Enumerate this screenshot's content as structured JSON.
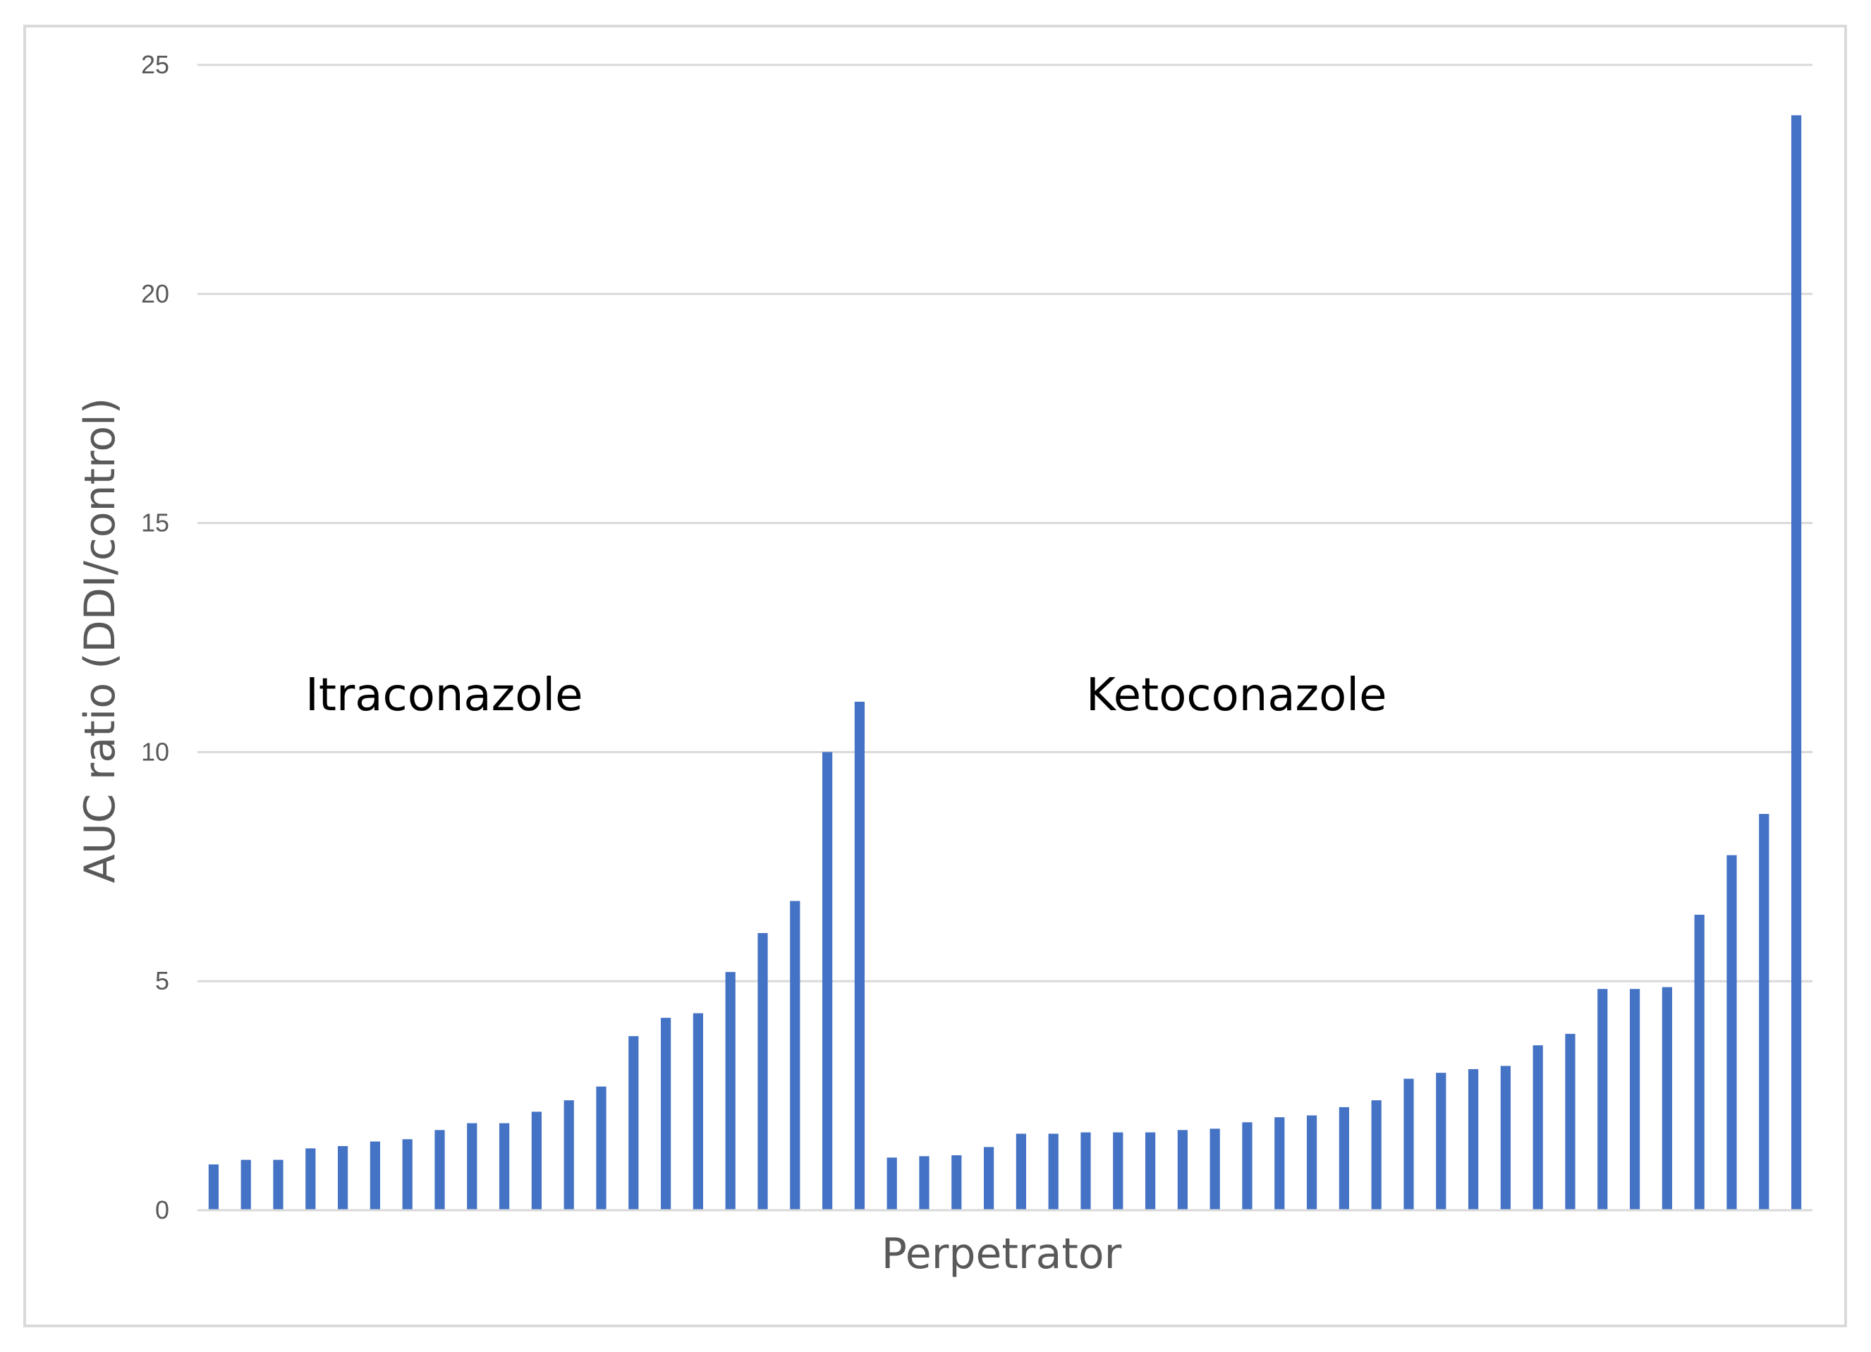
{
  "chart_data": {
    "type": "bar",
    "title": "",
    "xlabel": "Perpetrator",
    "ylabel": "AUC ratio (DDI/control)",
    "ylim": [
      0,
      25
    ],
    "yticks": [
      0,
      5,
      10,
      15,
      20,
      25
    ],
    "grid": true,
    "legend": "none",
    "bar_color": "#4472C4",
    "groups": [
      {
        "name": "Itraconazole",
        "values": [
          1.0,
          1.1,
          1.1,
          1.35,
          1.4,
          1.5,
          1.55,
          1.75,
          1.9,
          1.9,
          2.15,
          2.4,
          2.7,
          3.8,
          4.2,
          4.3,
          5.2,
          6.05,
          6.75,
          10.0,
          11.1
        ]
      },
      {
        "name": "Ketoconazole",
        "values": [
          1.15,
          1.18,
          1.2,
          1.38,
          1.67,
          1.67,
          1.7,
          1.7,
          1.7,
          1.75,
          1.78,
          1.92,
          2.03,
          2.07,
          2.25,
          2.4,
          2.87,
          3.0,
          3.08,
          3.15,
          3.6,
          3.85,
          4.83,
          4.83,
          4.87,
          6.45,
          7.75,
          8.65,
          23.9
        ]
      }
    ]
  }
}
